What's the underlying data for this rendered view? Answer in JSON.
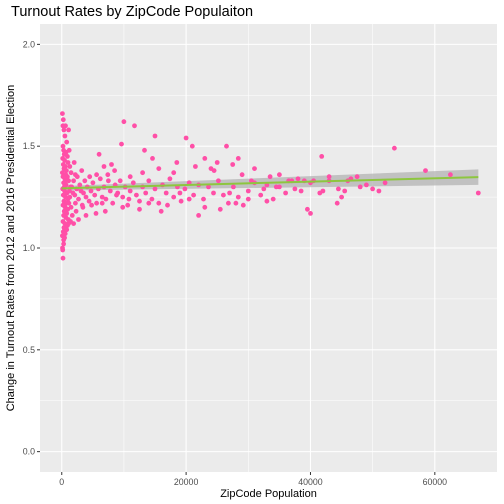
{
  "chart_data": {
    "type": "scatter",
    "title": "Turnout Rates by ZipCode Populaiton",
    "xlabel": "ZipCode Population",
    "ylabel": "Change in Turnout Rates from 2012 and 2016 Presidential Election",
    "xlim": [
      -3500,
      70000
    ],
    "ylim": [
      -0.1,
      2.1
    ],
    "xticks": [
      0,
      20000,
      40000,
      60000
    ],
    "xtick_labels": [
      "0",
      "20000",
      "40000",
      "60000"
    ],
    "yticks": [
      0.0,
      0.5,
      1.0,
      1.5,
      2.0
    ],
    "ytick_labels": [
      "0.0",
      "0.5",
      "1.0",
      "1.5",
      "2.0"
    ],
    "grid": true,
    "legend": "none",
    "colors": {
      "points": "#ff4fa7",
      "trend_line": "#8dc63f",
      "confidence_band": "#b3b3b3",
      "panel": "#ebebeb",
      "grid": "#ffffff"
    },
    "trend": {
      "type": "linear",
      "x": [
        0,
        67000
      ],
      "y": [
        1.293,
        1.348
      ],
      "band_low": [
        1.282,
        1.31
      ],
      "band_high": [
        1.304,
        1.386
      ]
    },
    "points": [
      [
        100,
        1.66
      ],
      [
        250,
        1.63
      ],
      [
        180,
        1.6
      ],
      [
        350,
        1.58
      ],
      [
        600,
        1.6
      ],
      [
        1100,
        1.58
      ],
      [
        500,
        1.55
      ],
      [
        800,
        1.52
      ],
      [
        200,
        1.5
      ],
      [
        300,
        1.48
      ],
      [
        700,
        1.47
      ],
      [
        1200,
        1.48
      ],
      [
        400,
        1.46
      ],
      [
        900,
        1.45
      ],
      [
        150,
        1.44
      ],
      [
        450,
        1.43
      ],
      [
        1000,
        1.42
      ],
      [
        250,
        1.41
      ],
      [
        550,
        1.4
      ],
      [
        1300,
        1.4
      ],
      [
        350,
        1.39
      ],
      [
        750,
        1.38
      ],
      [
        100,
        1.37
      ],
      [
        650,
        1.36
      ],
      [
        1500,
        1.37
      ],
      [
        200,
        1.35
      ],
      [
        500,
        1.34
      ],
      [
        900,
        1.35
      ],
      [
        1100,
        1.33
      ],
      [
        300,
        1.32
      ],
      [
        700,
        1.31
      ],
      [
        1400,
        1.3
      ],
      [
        150,
        1.29
      ],
      [
        450,
        1.28
      ],
      [
        850,
        1.27
      ],
      [
        1250,
        1.28
      ],
      [
        250,
        1.26
      ],
      [
        600,
        1.25
      ],
      [
        1000,
        1.24
      ],
      [
        350,
        1.23
      ],
      [
        750,
        1.22
      ],
      [
        1150,
        1.22
      ],
      [
        200,
        1.21
      ],
      [
        550,
        1.2
      ],
      [
        950,
        1.19
      ],
      [
        400,
        1.18
      ],
      [
        800,
        1.17
      ],
      [
        300,
        1.16
      ],
      [
        650,
        1.15
      ],
      [
        1050,
        1.14
      ],
      [
        200,
        1.13
      ],
      [
        500,
        1.12
      ],
      [
        900,
        1.11
      ],
      [
        350,
        1.1
      ],
      [
        250,
        1.08
      ],
      [
        100,
        1.06
      ],
      [
        300,
        1.04
      ],
      [
        150,
        0.99
      ],
      [
        200,
        0.95
      ],
      [
        400,
        1.3
      ],
      [
        600,
        1.33
      ],
      [
        1300,
        1.25
      ],
      [
        1600,
        1.3
      ],
      [
        1800,
        1.27
      ],
      [
        1900,
        1.33
      ],
      [
        2100,
        1.26
      ],
      [
        2200,
        1.22
      ],
      [
        2400,
        1.29
      ],
      [
        2500,
        1.35
      ],
      [
        2700,
        1.24
      ],
      [
        2900,
        1.31
      ],
      [
        3100,
        1.28
      ],
      [
        3300,
        1.21
      ],
      [
        3500,
        1.27
      ],
      [
        3700,
        1.33
      ],
      [
        3900,
        1.25
      ],
      [
        4100,
        1.3
      ],
      [
        4400,
        1.23
      ],
      [
        4700,
        1.28
      ],
      [
        5000,
        1.32
      ],
      [
        5300,
        1.26
      ],
      [
        5600,
        1.22
      ],
      [
        5900,
        1.29
      ],
      [
        6200,
        1.34
      ],
      [
        6500,
        1.25
      ],
      [
        6800,
        1.3
      ],
      [
        7100,
        1.24
      ],
      [
        7400,
        1.36
      ],
      [
        7800,
        1.28
      ],
      [
        8200,
        1.22
      ],
      [
        8600,
        1.31
      ],
      [
        9000,
        1.27
      ],
      [
        9400,
        1.33
      ],
      [
        9800,
        1.25
      ],
      [
        10200,
        1.3
      ],
      [
        10600,
        1.21
      ],
      [
        11000,
        1.28
      ],
      [
        11500,
        1.32
      ],
      [
        12000,
        1.26
      ],
      [
        12500,
        1.23
      ],
      [
        13000,
        1.3
      ],
      [
        13500,
        1.27
      ],
      [
        14000,
        1.33
      ],
      [
        14500,
        1.24
      ],
      [
        15000,
        1.29
      ],
      [
        15600,
        1.22
      ],
      [
        16200,
        1.31
      ],
      [
        16800,
        1.27
      ],
      [
        17400,
        1.34
      ],
      [
        18000,
        1.25
      ],
      [
        18600,
        1.3
      ],
      [
        19200,
        1.23
      ],
      [
        19800,
        1.29
      ],
      [
        20500,
        1.32
      ],
      [
        21200,
        1.26
      ],
      [
        22000,
        1.31
      ],
      [
        22800,
        1.24
      ],
      [
        23600,
        1.3
      ],
      [
        24400,
        1.27
      ],
      [
        25200,
        1.33
      ],
      [
        26000,
        1.26
      ],
      [
        26800,
        1.22
      ],
      [
        27600,
        1.3
      ],
      [
        28400,
        1.25
      ],
      [
        29200,
        1.21
      ],
      [
        30000,
        1.28
      ],
      [
        31000,
        1.32
      ],
      [
        32000,
        1.26
      ],
      [
        33000,
        1.31
      ],
      [
        34000,
        1.24
      ],
      [
        35000,
        1.3
      ],
      [
        36000,
        1.27
      ],
      [
        37000,
        1.33
      ],
      [
        38500,
        1.28
      ],
      [
        40000,
        1.32
      ],
      [
        41500,
        1.27
      ],
      [
        43000,
        1.33
      ],
      [
        44500,
        1.29
      ],
      [
        46000,
        1.33
      ],
      [
        48000,
        1.3
      ],
      [
        50000,
        1.29
      ],
      [
        52000,
        1.32
      ],
      [
        6000,
        1.46
      ],
      [
        8000,
        1.41
      ],
      [
        9600,
        1.51
      ],
      [
        10000,
        1.62
      ],
      [
        11700,
        1.6
      ],
      [
        13300,
        1.48
      ],
      [
        14600,
        1.44
      ],
      [
        15000,
        1.55
      ],
      [
        18500,
        1.42
      ],
      [
        20000,
        1.54
      ],
      [
        21000,
        1.5
      ],
      [
        23000,
        1.44
      ],
      [
        24500,
        1.38
      ],
      [
        26500,
        1.5
      ],
      [
        28400,
        1.44
      ],
      [
        29000,
        1.36
      ],
      [
        31000,
        1.39
      ],
      [
        33500,
        1.35
      ],
      [
        35000,
        1.36
      ],
      [
        36500,
        1.33
      ],
      [
        38000,
        1.34
      ],
      [
        39000,
        1.33
      ],
      [
        40500,
        1.33
      ],
      [
        41800,
        1.45
      ],
      [
        43000,
        1.35
      ],
      [
        46500,
        1.34
      ],
      [
        47500,
        1.35
      ],
      [
        53500,
        1.49
      ],
      [
        58500,
        1.38
      ],
      [
        62500,
        1.36
      ],
      [
        67000,
        1.27
      ],
      [
        40000,
        1.17
      ],
      [
        44300,
        1.22
      ],
      [
        45000,
        1.25
      ],
      [
        39500,
        1.19
      ],
      [
        33000,
        1.23
      ],
      [
        25500,
        1.19
      ],
      [
        23000,
        1.2
      ],
      [
        22000,
        1.16
      ],
      [
        17000,
        1.21
      ],
      [
        16000,
        1.18
      ],
      [
        12500,
        1.19
      ],
      [
        9800,
        1.2
      ],
      [
        7000,
        1.18
      ],
      [
        5500,
        1.17
      ],
      [
        3900,
        1.16
      ],
      [
        2700,
        1.14
      ],
      [
        1900,
        1.12
      ],
      [
        1500,
        1.2
      ],
      [
        2000,
        1.42
      ],
      [
        2200,
        1.36
      ],
      [
        3200,
        1.38
      ],
      [
        4500,
        1.35
      ],
      [
        5600,
        1.36
      ],
      [
        6800,
        1.4
      ],
      [
        7500,
        1.33
      ],
      [
        8500,
        1.38
      ],
      [
        11000,
        1.35
      ],
      [
        13000,
        1.37
      ],
      [
        15600,
        1.39
      ],
      [
        18000,
        1.37
      ],
      [
        21500,
        1.4
      ],
      [
        24000,
        1.39
      ],
      [
        25000,
        1.42
      ],
      [
        27500,
        1.41
      ],
      [
        30500,
        1.33
      ],
      [
        32500,
        1.29
      ],
      [
        34500,
        1.3
      ],
      [
        37500,
        1.29
      ],
      [
        42000,
        1.28
      ],
      [
        45500,
        1.28
      ],
      [
        49000,
        1.31
      ],
      [
        51000,
        1.28
      ],
      [
        30000,
        1.24
      ],
      [
        28000,
        1.22
      ],
      [
        27000,
        1.27
      ],
      [
        19000,
        1.27
      ],
      [
        20500,
        1.24
      ],
      [
        14000,
        1.22
      ],
      [
        10800,
        1.24
      ],
      [
        8800,
        1.26
      ],
      [
        6500,
        1.22
      ],
      [
        4800,
        1.21
      ],
      [
        3400,
        1.2
      ],
      [
        2300,
        1.18
      ],
      [
        1700,
        1.16
      ],
      [
        1400,
        1.13
      ],
      [
        1100,
        1.12
      ],
      [
        800,
        1.09
      ],
      [
        550,
        1.07
      ],
      [
        450,
        1.05
      ],
      [
        300,
        1.02
      ],
      [
        120,
        1.0
      ]
    ]
  }
}
